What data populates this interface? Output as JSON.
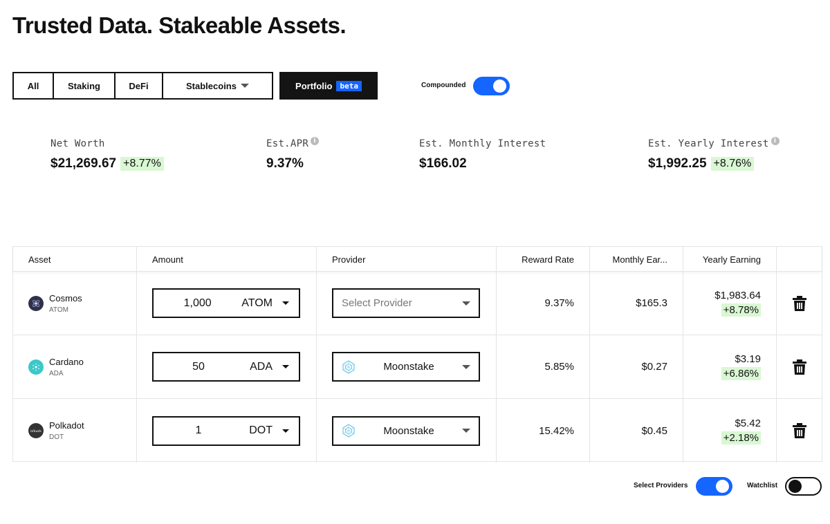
{
  "page": {
    "title": "Trusted Data. Stakeable Assets."
  },
  "filters": {
    "all": "All",
    "staking": "Staking",
    "defi": "DeFi",
    "stablecoins": "Stablecoins",
    "portfolio": "Portfolio",
    "beta": "beta"
  },
  "compounded": {
    "label": "Compounded",
    "on": true
  },
  "stats": {
    "net_worth": {
      "label": "Net Worth",
      "value": "$21,269.67",
      "change": "+8.77%"
    },
    "apr": {
      "label": "Est.APR",
      "value": "9.37%"
    },
    "monthly": {
      "label": "Est. Monthly Interest",
      "value": "$166.02"
    },
    "yearly": {
      "label": "Est. Yearly Interest",
      "value": "$1,992.25",
      "change": "+8.76%"
    }
  },
  "table": {
    "headers": {
      "asset": "Asset",
      "amount": "Amount",
      "provider": "Provider",
      "rate": "Reward Rate",
      "monthly": "Monthly Ear...",
      "yearly": "Yearly Earning"
    },
    "rows": [
      {
        "name": "Cosmos",
        "ticker": "ATOM",
        "amount": "1,000",
        "unit": "ATOM",
        "provider": "",
        "provider_placeholder": "Select Provider",
        "rate": "9.37%",
        "monthly": "$165.3",
        "yearly": "$1,983.64",
        "yearly_change": "+8.78%",
        "icon_color": "#2e3148"
      },
      {
        "name": "Cardano",
        "ticker": "ADA",
        "amount": "50",
        "unit": "ADA",
        "provider": "Moonstake",
        "provider_placeholder": "",
        "rate": "5.85%",
        "monthly": "$0.27",
        "yearly": "$3.19",
        "yearly_change": "+6.86%",
        "icon_color": "#3cc8c8"
      },
      {
        "name": "Polkadot",
        "ticker": "DOT",
        "amount": "1",
        "unit": "DOT",
        "provider": "Moonstake",
        "provider_placeholder": "",
        "rate": "15.42%",
        "monthly": "$0.45",
        "yearly": "$5.42",
        "yearly_change": "+2.18%",
        "icon_color": "#333333"
      }
    ]
  },
  "footer": {
    "select_providers": {
      "label": "Select Providers",
      "on": true
    },
    "watchlist": {
      "label": "Watchlist",
      "on": false
    }
  },
  "colors": {
    "accent": "#1565ff",
    "positive_bg": "#d9f7d3",
    "dark": "#141414"
  }
}
